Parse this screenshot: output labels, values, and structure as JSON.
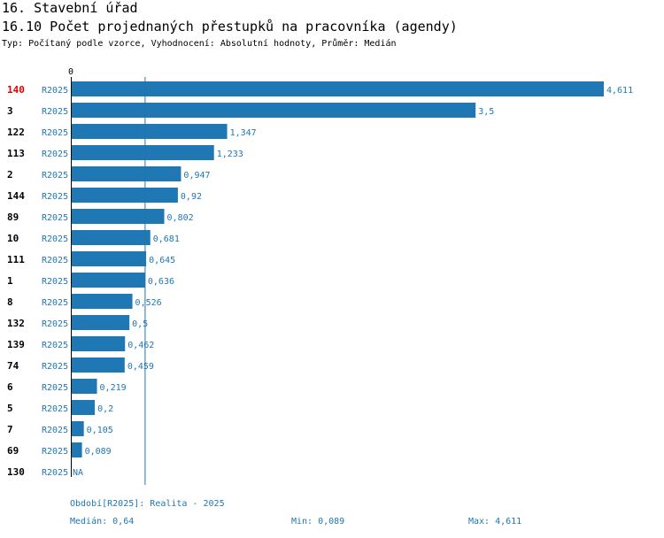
{
  "header": {
    "title": "16. Stavební úřad",
    "chart_title": "16.10 Počet projednaných přestupků na pracovníka (agendy)",
    "subtitle": "Typ: Počítaný podle vzorce, Vyhodnocení: Absolutní hodnoty, Průměr: Medián"
  },
  "footer": {
    "period": "Období[R2025]: Realita - 2025",
    "median": "Medián: 0,64",
    "min": "Min: 0,089",
    "max": "Max: 4,611"
  },
  "colors": {
    "bar": "#1f77b4",
    "highlight": "#e00000"
  },
  "chart_data": {
    "type": "bar",
    "orientation": "horizontal",
    "title": "16.10 Počet projednaných přestupků na pracovníka (agendy)",
    "x_tick_label": "0",
    "xlim": [
      0,
      4.611
    ],
    "median": 0.64,
    "highlight_category": "140",
    "series_label": "R2025",
    "categories": [
      "140",
      "3",
      "122",
      "113",
      "2",
      "144",
      "89",
      "10",
      "111",
      "1",
      "8",
      "132",
      "139",
      "74",
      "6",
      "5",
      "7",
      "69",
      "130"
    ],
    "values": [
      4.611,
      3.5,
      1.347,
      1.233,
      0.947,
      0.92,
      0.802,
      0.681,
      0.645,
      0.636,
      0.526,
      0.5,
      0.462,
      0.459,
      0.219,
      0.2,
      0.105,
      0.089,
      null
    ],
    "value_labels": [
      "4,611",
      "3,5",
      "1,347",
      "1,233",
      "0,947",
      "0,92",
      "0,802",
      "0,681",
      "0,645",
      "0,636",
      "0,526",
      "0,5",
      "0,462",
      "0,459",
      "0,219",
      "0,2",
      "0,105",
      "0,089",
      "NA"
    ]
  }
}
